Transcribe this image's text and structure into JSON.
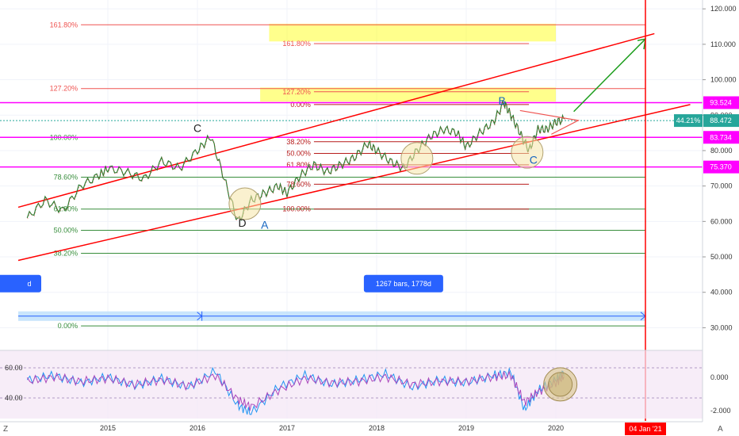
{
  "chart_data": {
    "type": "line",
    "x_ticks": [
      "2015",
      "2016",
      "2017",
      "2018",
      "2019",
      "2020"
    ],
    "price_axis": {
      "ticks": [
        "120.000",
        "110.000",
        "100.000",
        "90.000",
        "80.000",
        "70.000",
        "60.000",
        "50.000",
        "40.000",
        "30.000"
      ],
      "tick_values": [
        120,
        110,
        100,
        90,
        80,
        70,
        60,
        50,
        40,
        30
      ],
      "ylim": [
        24.5,
        122.5
      ],
      "badges": [
        {
          "label": "93.524",
          "value": 93.524,
          "color": "#ff00ff"
        },
        {
          "label": "88.472",
          "value": 88.472,
          "color": "#26a69a",
          "prefix": "44.21%"
        },
        {
          "label": "83.734",
          "value": 83.734,
          "color": "#ff00ff"
        },
        {
          "label": "75.370",
          "value": 75.37,
          "color": "#ff00ff"
        }
      ]
    },
    "oscillator_axis": {
      "left_ticks": [
        "60.00",
        "40.00"
      ],
      "left_values": [
        60,
        40
      ],
      "right_ticks": [
        "0.000",
        "-2.000"
      ],
      "right_values": [
        0,
        -2
      ]
    },
    "price_series": {
      "name": "",
      "x": [
        2014.1,
        2014.3,
        2014.5,
        2014.7,
        2014.9,
        2015.0,
        2015.2,
        2015.4,
        2015.6,
        2015.8,
        2016.0,
        2016.15,
        2016.3,
        2016.45,
        2016.6,
        2016.75,
        2016.9,
        2017.0,
        2017.15,
        2017.3,
        2017.45,
        2017.6,
        2017.75,
        2017.9,
        2018.0,
        2018.15,
        2018.3,
        2018.45,
        2018.6,
        2018.75,
        2018.9,
        2019.0,
        2019.15,
        2019.3,
        2019.42,
        2019.5,
        2019.6,
        2019.7,
        2019.8,
        2019.9,
        2020.0,
        2020.1
      ],
      "y": [
        61,
        66,
        63,
        70,
        73,
        75,
        74,
        72,
        77,
        75,
        80,
        84,
        72,
        60,
        66,
        68,
        70,
        68,
        73,
        76,
        74,
        76,
        78,
        82,
        80,
        77,
        75,
        80,
        84,
        86,
        85,
        81,
        85,
        88,
        93.5,
        90,
        85,
        80,
        86,
        86,
        88,
        89
      ]
    },
    "trend_lines": [
      {
        "color": "#ff0000",
        "x": [
          2014.0,
          2021.1
        ],
        "y": [
          64,
          113
        ]
      },
      {
        "color": "#ff0000",
        "x": [
          2014.0,
          2021.5
        ],
        "y": [
          49,
          93
        ]
      }
    ],
    "fib_retracement_1": {
      "color": "#388e3c",
      "x_range": [
        2014.7,
        2021.0
      ],
      "levels": [
        {
          "label": "161.80%",
          "value": 115.5,
          "color": "#ef5350"
        },
        {
          "label": "127.20%",
          "value": 97.5,
          "color": "#ef5350"
        },
        {
          "label": "100.00%",
          "value": 83.734,
          "color": "#388e3c"
        },
        {
          "label": "78.60%",
          "value": 72.5,
          "color": "#388e3c"
        },
        {
          "label": "61.80%",
          "value": 63.5,
          "color": "#388e3c"
        },
        {
          "label": "50.00%",
          "value": 57.5,
          "color": "#388e3c"
        },
        {
          "label": "38.20%",
          "value": 51.0,
          "color": "#388e3c"
        },
        {
          "label": "0.00%",
          "value": 30.5,
          "color": "#388e3c"
        }
      ]
    },
    "fib_retracement_2": {
      "color": "#b71c1c",
      "x_range": [
        2017.3,
        2019.7
      ],
      "levels": [
        {
          "label": "161.80%",
          "value": 110.2,
          "color": "#ef5350"
        },
        {
          "label": "127.20%",
          "value": 96.6,
          "color": "#ef5350"
        },
        {
          "label": "0.00%",
          "value": 93.0,
          "color": "#b71c1c"
        },
        {
          "label": "38.20%",
          "value": 82.5,
          "color": "#b71c1c"
        },
        {
          "label": "50.00%",
          "value": 79.2,
          "color": "#b71c1c"
        },
        {
          "label": "61.80%",
          "value": 76.0,
          "color": "#b71c1c"
        },
        {
          "label": "78.60%",
          "value": 70.5,
          "color": "#b71c1c"
        },
        {
          "label": "100.00%",
          "value": 63.5,
          "color": "#b71c1c"
        }
      ]
    },
    "horizontal_levels": [
      {
        "value": 93.524,
        "color": "#ff00ff"
      },
      {
        "value": 83.734,
        "color": "#ff00ff"
      },
      {
        "value": 75.37,
        "color": "#ff00ff"
      },
      {
        "value": 88.472,
        "color": "#26a69a"
      }
    ],
    "target_zones": [
      {
        "x": [
          2016.8,
          2020.0
        ],
        "y": [
          110.8,
          115.8
        ],
        "color": "#ffff00"
      },
      {
        "x": [
          2016.7,
          2020.0
        ],
        "y": [
          93.8,
          97.8
        ],
        "color": "#ffff00"
      }
    ],
    "wave_labels": [
      {
        "text": "C",
        "x": 2016.0,
        "y": 85.2,
        "color": "#222222"
      },
      {
        "text": "D",
        "x": 2016.5,
        "y": 58.5,
        "color": "#222222"
      },
      {
        "text": "A",
        "x": 2016.75,
        "y": 58.0,
        "color": "#1565c0"
      },
      {
        "text": "B",
        "x": 2019.4,
        "y": 93.0,
        "color": "#1565c0"
      },
      {
        "text": "C",
        "x": 2019.75,
        "y": 76.3,
        "color": "#1565c0"
      }
    ],
    "circles": [
      {
        "x": 2016.53,
        "y": 65.0
      },
      {
        "x": 2018.45,
        "y": 77.8
      },
      {
        "x": 2019.68,
        "y": 79.5
      }
    ],
    "projection_arrow": {
      "x": [
        2020.2,
        2021.0
      ],
      "y": [
        91.0,
        111.5
      ],
      "color": "#1e9e1e"
    },
    "triangle": {
      "x": [
        2019.6,
        2019.95,
        2020.25
      ],
      "y": [
        91.3,
        84.6,
        88.5
      ],
      "color": "#ef5350"
    },
    "date_range": {
      "label": "1267 bars, 1778d",
      "x": [
        2014.0,
        2021.0
      ],
      "y": 33.5
    },
    "oscillator_series": [
      {
        "name": "",
        "color": "#2196f3",
        "x": [
          2014.1,
          2014.4,
          2014.7,
          2015.0,
          2015.3,
          2015.6,
          2015.9,
          2016.2,
          2016.45,
          2016.6,
          2016.9,
          2017.2,
          2017.5,
          2017.8,
          2018.1,
          2018.4,
          2018.7,
          2019.0,
          2019.3,
          2019.5,
          2019.65,
          2019.8,
          2020.0,
          2020.1
        ],
        "y": [
          52,
          55,
          50,
          54,
          48,
          53,
          47,
          58,
          35,
          30,
          47,
          55,
          49,
          52,
          56,
          47,
          52,
          50,
          55,
          57,
          32,
          45,
          52,
          58
        ]
      },
      {
        "name": "",
        "color": "#ab47bc",
        "x": [
          2014.1,
          2014.4,
          2014.7,
          2015.0,
          2015.3,
          2015.6,
          2015.9,
          2016.2,
          2016.45,
          2016.6,
          2016.9,
          2017.2,
          2017.5,
          2017.8,
          2018.1,
          2018.4,
          2018.7,
          2019.0,
          2019.3,
          2019.5,
          2019.65,
          2019.8,
          2020.0,
          2020.1
        ],
        "y": [
          51,
          54,
          51,
          53,
          49,
          52,
          48,
          55,
          39,
          34,
          45,
          53,
          50,
          51,
          54,
          49,
          51,
          51,
          54,
          55,
          37,
          44,
          50,
          55
        ]
      }
    ],
    "current_date_marker": {
      "label": "04 Jan '21",
      "x": 2021.0,
      "color": "#ff0000"
    },
    "title": "",
    "xlabel": "",
    "ylabel": ""
  },
  "ui": {
    "corner_left": "Z",
    "corner_right": "A",
    "left_badge": "d",
    "accent": "#2962ff"
  }
}
